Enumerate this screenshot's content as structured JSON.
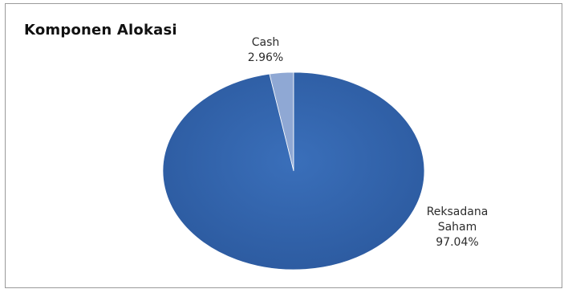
{
  "chart_data": {
    "type": "pie",
    "title": "Komponen Alokasi",
    "slices": [
      {
        "name": "Cash",
        "value": 2.96,
        "label_value": "2.96%",
        "color": "#8fa8d4"
      },
      {
        "name_lines": [
          "Reksadana",
          "Saham"
        ],
        "name": "Reksadana Saham",
        "value": 97.04,
        "label_value": "97.04%",
        "color": "#3163ad"
      }
    ],
    "legend": "none"
  }
}
